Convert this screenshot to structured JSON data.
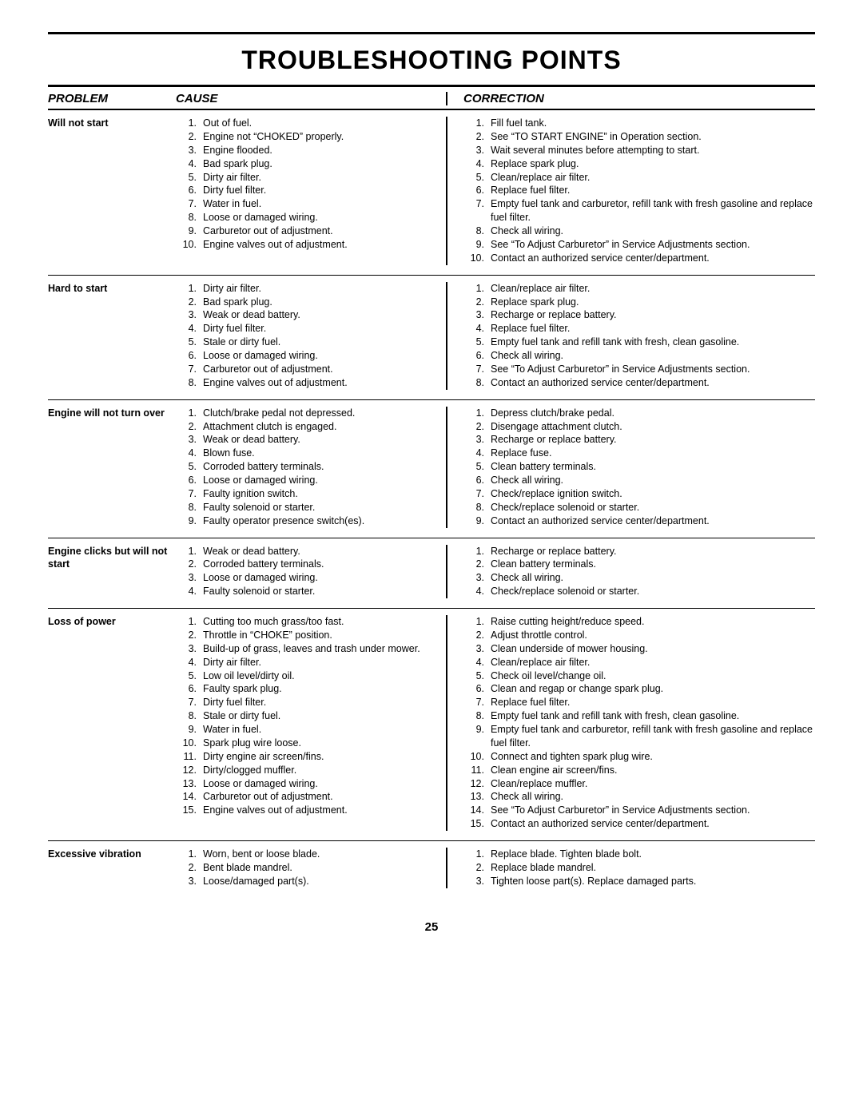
{
  "title": "TROUBLESHOOTING POINTS",
  "page_number": "25",
  "headers": {
    "problem": "PROBLEM",
    "cause": "CAUSE",
    "correction": "CORRECTION"
  },
  "sections": [
    {
      "problem": "Will not start",
      "causes": [
        "Out of fuel.",
        "Engine not “CHOKED” properly.",
        "Engine flooded.",
        "Bad spark plug.",
        "Dirty air filter.",
        "Dirty fuel filter.",
        "Water in fuel.",
        "Loose or damaged wiring.",
        "Carburetor out of adjustment.",
        "Engine valves out of adjustment."
      ],
      "corrections": [
        "Fill fuel tank.",
        "See “TO START ENGINE” in Operation section.",
        "Wait several minutes before attempting to start.",
        "Replace spark plug.",
        "Clean/replace air filter.",
        "Replace fuel filter.",
        "Empty fuel tank and carburetor, refill tank with fresh gasoline and replace fuel filter.",
        "Check all wiring.",
        "See “To Adjust Carburetor” in Service Adjustments section.",
        "Contact an authorized service center/department."
      ]
    },
    {
      "problem": "Hard to start",
      "causes": [
        "Dirty air filter.",
        "Bad spark plug.",
        "Weak or dead battery.",
        "Dirty fuel filter.",
        "Stale or dirty fuel.",
        "Loose or damaged wiring.",
        "Carburetor out of adjustment.",
        "Engine valves out of adjustment."
      ],
      "corrections": [
        "Clean/replace air filter.",
        "Replace spark plug.",
        "Recharge or replace battery.",
        "Replace fuel filter.",
        "Empty fuel tank and refill tank with fresh, clean gasoline.",
        "Check all wiring.",
        "See “To Adjust Carburetor” in Service Adjustments section.",
        "Contact an authorized service center/department."
      ]
    },
    {
      "problem": "Engine will not turn over",
      "causes": [
        "Clutch/brake pedal not depressed.",
        "Attachment clutch is engaged.",
        "Weak or dead battery.",
        "Blown fuse.",
        "Corroded battery terminals.",
        "Loose or damaged wiring.",
        "Faulty ignition switch.",
        "Faulty solenoid or starter.",
        "Faulty operator presence switch(es)."
      ],
      "corrections": [
        "Depress clutch/brake pedal.",
        "Disengage attachment clutch.",
        "Recharge or replace battery.",
        "Replace fuse.",
        "Clean battery terminals.",
        "Check all wiring.",
        "Check/replace ignition switch.",
        "Check/replace solenoid or starter.",
        "Contact an authorized service center/department."
      ]
    },
    {
      "problem": "Engine clicks but will not start",
      "causes": [
        "Weak or dead battery.",
        "Corroded battery terminals.",
        "Loose or damaged wiring.",
        "Faulty solenoid or starter."
      ],
      "corrections": [
        "Recharge or replace battery.",
        "Clean battery terminals.",
        "Check all wiring.",
        "Check/replace solenoid or starter."
      ]
    },
    {
      "problem": "Loss of power",
      "causes": [
        "Cutting too much grass/too fast.",
        "Throttle in “CHOKE” position.",
        "Build-up of grass, leaves and trash under mower.",
        "Dirty air filter.",
        "Low oil level/dirty oil.",
        "Faulty spark plug.",
        "Dirty fuel filter.",
        "Stale or dirty fuel.",
        "Water in fuel.",
        "Spark plug wire loose.",
        "Dirty engine air screen/fins.",
        "Dirty/clogged muffler.",
        "Loose or damaged wiring.",
        "Carburetor out of adjustment.",
        "Engine valves out of adjustment."
      ],
      "corrections": [
        "Raise cutting height/reduce speed.",
        "Adjust throttle control.",
        "Clean underside of mower housing.",
        "Clean/replace air filter.",
        "Check oil level/change oil.",
        "Clean and regap or change spark plug.",
        "Replace fuel filter.",
        "Empty fuel tank and refill tank with fresh, clean gasoline.",
        "Empty fuel tank and carburetor, refill tank with fresh gasoline and replace fuel filter.",
        "Connect and tighten spark plug wire.",
        "Clean engine air screen/fins.",
        "Clean/replace muffler.",
        "Check all wiring.",
        "See “To Adjust Carburetor” in Service Adjustments section.",
        "Contact an authorized service center/department."
      ]
    },
    {
      "problem": "Excessive vibration",
      "causes": [
        "Worn, bent or loose blade.",
        "Bent blade mandrel.",
        "Loose/damaged part(s)."
      ],
      "corrections": [
        "Replace blade.  Tighten blade bolt.",
        "Replace blade mandrel.",
        "Tighten loose part(s).  Replace damaged parts."
      ]
    }
  ]
}
